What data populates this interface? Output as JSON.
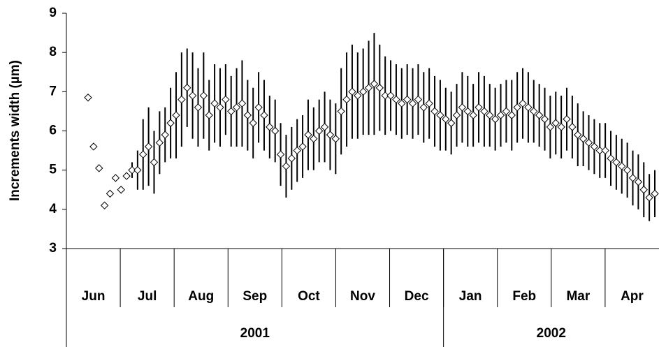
{
  "chart_data": {
    "type": "errorbar",
    "y_label": "Increments width (µm)",
    "ylim": [
      3,
      9
    ],
    "yticks": [
      3,
      4,
      5,
      6,
      7,
      8,
      9
    ],
    "groups": [
      {
        "label": "2001",
        "categories": [
          "Jun",
          "Jul",
          "Aug",
          "Sep",
          "Oct",
          "Nov",
          "Dec"
        ]
      },
      {
        "label": "2002",
        "categories": [
          "Jan",
          "Feb",
          "Mar",
          "Apr"
        ]
      }
    ],
    "marker_color": "#ffffff",
    "bar_color": "#000000",
    "values": [
      6.85,
      5.6,
      5.05,
      4.1,
      4.4,
      4.8,
      4.5,
      4.85,
      5.0,
      5.0,
      5.4,
      5.6,
      5.2,
      5.7,
      5.9,
      6.2,
      6.4,
      6.8,
      7.1,
      6.9,
      6.6,
      6.9,
      6.4,
      6.7,
      6.6,
      6.8,
      6.5,
      6.6,
      6.7,
      6.4,
      6.2,
      6.6,
      6.4,
      6.1,
      6.0,
      5.4,
      5.1,
      5.3,
      5.5,
      5.6,
      5.9,
      5.8,
      6.0,
      6.1,
      5.9,
      5.8,
      6.5,
      6.8,
      7.0,
      6.9,
      7.0,
      7.1,
      7.2,
      7.1,
      6.9,
      6.9,
      6.8,
      6.7,
      6.8,
      6.7,
      6.8,
      6.6,
      6.7,
      6.5,
      6.4,
      6.3,
      6.2,
      6.4,
      6.6,
      6.5,
      6.4,
      6.6,
      6.5,
      6.4,
      6.3,
      6.4,
      6.5,
      6.4,
      6.6,
      6.7,
      6.6,
      6.5,
      6.4,
      6.3,
      6.1,
      6.2,
      6.1,
      6.3,
      6.1,
      5.9,
      5.8,
      5.7,
      5.6,
      5.5,
      5.5,
      5.3,
      5.2,
      5.1,
      5.0,
      4.8,
      4.7,
      4.5,
      4.3,
      4.4
    ],
    "errors": [
      0,
      0,
      0,
      0,
      0,
      0,
      0,
      0,
      0.2,
      0.5,
      0.9,
      1.0,
      0.8,
      0.8,
      0.7,
      0.9,
      1.1,
      1.2,
      1.0,
      1.1,
      1.0,
      1.1,
      0.9,
      1.0,
      1.0,
      0.9,
      0.9,
      1.0,
      1.1,
      0.9,
      0.9,
      0.9,
      0.9,
      0.8,
      0.8,
      0.8,
      0.8,
      0.8,
      0.8,
      0.8,
      0.9,
      0.8,
      0.8,
      0.9,
      0.9,
      0.9,
      1.1,
      1.2,
      1.2,
      1.1,
      1.1,
      1.2,
      1.3,
      1.1,
      1.0,
      0.9,
      0.9,
      0.9,
      0.9,
      0.9,
      0.9,
      0.9,
      0.9,
      0.9,
      0.9,
      0.8,
      0.8,
      0.8,
      0.9,
      0.9,
      0.8,
      0.9,
      0.9,
      0.8,
      0.8,
      0.8,
      0.8,
      0.9,
      0.9,
      0.9,
      0.9,
      0.8,
      0.8,
      0.8,
      0.8,
      0.8,
      0.8,
      0.8,
      0.8,
      0.8,
      0.7,
      0.7,
      0.7,
      0.7,
      0.7,
      0.7,
      0.7,
      0.7,
      0.7,
      0.7,
      0.7,
      0.7,
      0.6,
      0.6
    ]
  }
}
